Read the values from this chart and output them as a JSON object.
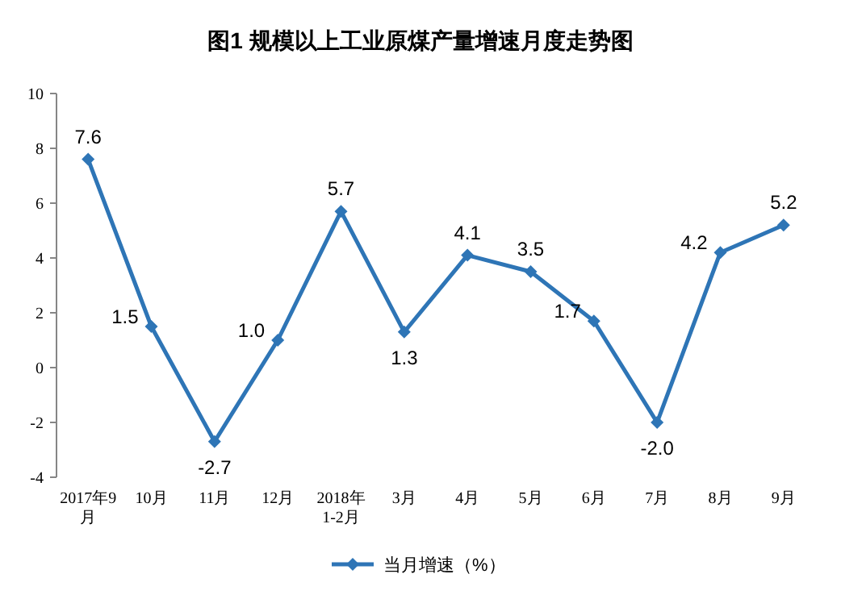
{
  "chart_data": {
    "type": "line",
    "title": "图1  规模以上工业原煤产量增速月度走势图",
    "categories": [
      "2017年9月",
      "10月",
      "11月",
      "12月",
      "2018年1-2月",
      "3月",
      "4月",
      "5月",
      "6月",
      "7月",
      "8月",
      "9月"
    ],
    "series": [
      {
        "name": "当月增速（%）",
        "color": "#2e75b6",
        "values": [
          7.6,
          1.5,
          -2.7,
          1.0,
          5.7,
          1.3,
          4.1,
          3.5,
          1.7,
          -2.0,
          4.2,
          5.2
        ],
        "value_labels": [
          "7.6",
          "1.5",
          "-2.7",
          "1.0",
          "5.7",
          "1.3",
          "4.1",
          "3.5",
          "1.7",
          "-2.0",
          "4.2",
          "5.2"
        ]
      }
    ],
    "ylim": [
      -4,
      10
    ],
    "yticks": [
      -4,
      -2,
      0,
      2,
      4,
      6,
      8,
      10
    ],
    "legend": "bottom",
    "marker": "diamond",
    "line_style": "solid",
    "grid": false
  }
}
